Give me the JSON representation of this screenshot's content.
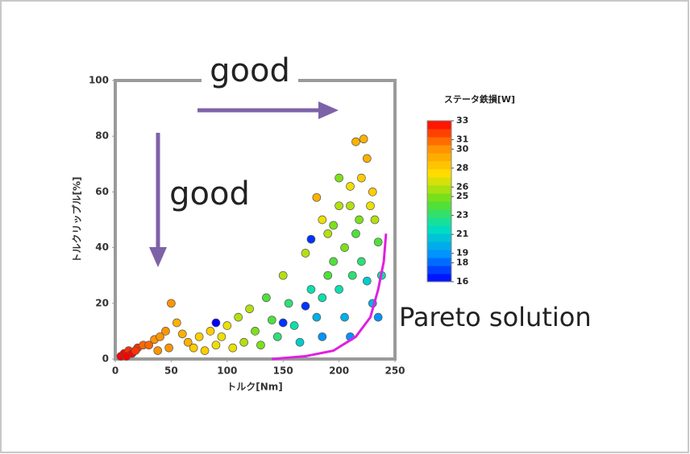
{
  "chart_data": {
    "type": "scatter",
    "xlabel": "トルク[Nm]",
    "ylabel": "トルクリップル[%]",
    "colorbar_title": "ステータ鉄損[W]",
    "annotations": [
      "good",
      "good",
      "Pareto solution"
    ],
    "xlim": [
      0,
      250
    ],
    "xticks": [
      0,
      50,
      100,
      150,
      200,
      250
    ],
    "ylim": [
      0,
      100
    ],
    "yticks": [
      0,
      20,
      40,
      60,
      80,
      100
    ],
    "clim": [
      16,
      33
    ],
    "cticks": [
      33,
      31,
      30,
      28,
      26,
      25,
      23,
      21,
      19,
      18,
      16
    ],
    "colormap": [
      "#0000ff",
      "#0090ff",
      "#00e0c0",
      "#60e020",
      "#ffe000",
      "#ff9000",
      "#ff0000"
    ],
    "x": [
      5,
      8,
      12,
      15,
      20,
      25,
      18,
      10,
      30,
      35,
      40,
      45,
      50,
      55,
      60,
      48,
      38,
      65,
      70,
      75,
      80,
      85,
      90,
      95,
      100,
      105,
      110,
      115,
      120,
      125,
      130,
      135,
      140,
      145,
      150,
      155,
      160,
      165,
      170,
      175,
      180,
      185,
      90,
      150,
      170,
      175,
      180,
      185,
      190,
      195,
      200,
      205,
      210,
      200,
      210,
      215,
      220,
      225,
      230,
      235,
      215,
      222,
      225,
      230,
      232,
      235,
      238,
      210,
      200,
      195,
      220,
      228,
      218,
      205,
      212,
      190,
      185
    ],
    "y": [
      1,
      2,
      3,
      2,
      4,
      5,
      3,
      1,
      5,
      7,
      8,
      10,
      20,
      13,
      9,
      4,
      3,
      6,
      4,
      8,
      3,
      10,
      5,
      8,
      12,
      4,
      15,
      6,
      18,
      10,
      5,
      22,
      14,
      8,
      30,
      20,
      12,
      6,
      38,
      25,
      15,
      8,
      13,
      13,
      19,
      43,
      58,
      50,
      45,
      35,
      25,
      15,
      8,
      65,
      55,
      45,
      35,
      28,
      20,
      15,
      78,
      79,
      72,
      60,
      50,
      42,
      30,
      62,
      55,
      48,
      65,
      55,
      50,
      40,
      30,
      30,
      22
    ],
    "color_values": [
      33,
      33,
      32,
      33,
      32,
      31,
      32,
      33,
      31,
      30,
      30,
      30,
      30,
      29,
      29,
      30,
      30,
      29,
      28,
      28,
      28,
      28,
      27,
      27,
      27,
      27,
      26,
      26,
      26,
      25,
      25,
      24,
      24,
      23,
      26,
      23,
      22,
      21,
      26,
      22,
      20,
      19,
      16,
      17,
      17,
      17,
      29,
      27,
      26,
      24,
      22,
      20,
      19,
      25,
      26,
      24,
      23,
      21,
      20,
      19,
      29,
      29,
      29,
      28,
      26,
      24,
      22,
      27,
      26,
      25,
      28,
      27,
      25,
      25,
      23,
      24,
      22
    ],
    "pareto": {
      "color": "#e020e0",
      "x": [
        140,
        170,
        195,
        215,
        228,
        235,
        240,
        242
      ],
      "y": [
        0,
        1,
        3,
        8,
        15,
        25,
        35,
        45
      ]
    }
  }
}
